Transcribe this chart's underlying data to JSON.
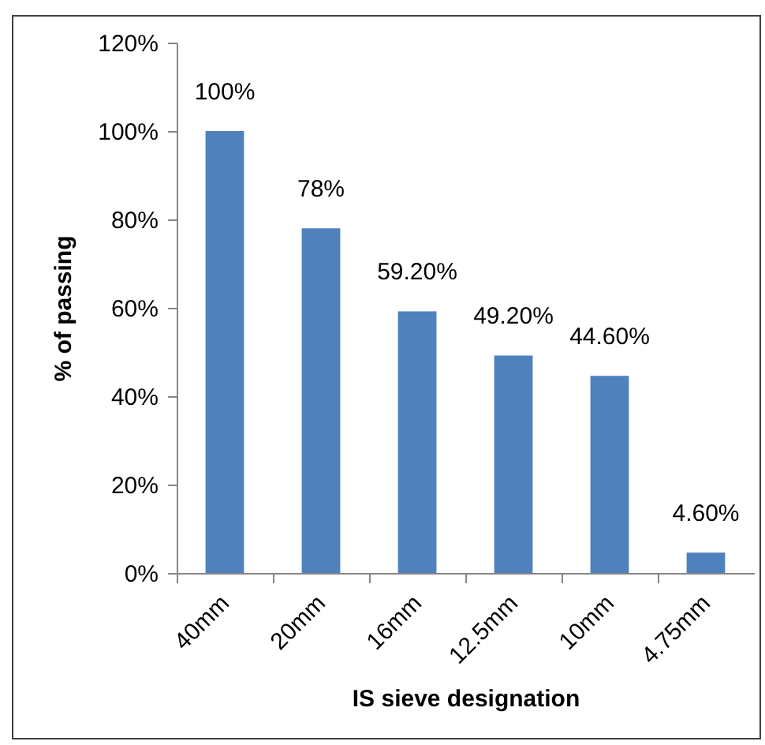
{
  "chart_data": {
    "type": "bar",
    "xlabel": "IS sieve designation",
    "ylabel": "% of passing",
    "categories": [
      "40mm",
      "20mm",
      "16mm",
      "12.5mm",
      "10mm",
      "4.75mm"
    ],
    "values": [
      100,
      78,
      59.2,
      49.2,
      44.6,
      4.6
    ],
    "color": "#4f81bd",
    "value_labels": [
      "100%",
      "78%",
      "59.20%",
      "49.20%",
      "44.60%",
      "4.60%"
    ],
    "ylim": [
      0,
      120
    ],
    "yticks": [
      {
        "value": 0,
        "label": "0%"
      },
      {
        "value": 20,
        "label": "20%"
      },
      {
        "value": 40,
        "label": "40%"
      },
      {
        "value": 60,
        "label": "60%"
      },
      {
        "value": 80,
        "label": "80%"
      },
      {
        "value": 100,
        "label": "100%"
      },
      {
        "value": 120,
        "label": "120%"
      }
    ]
  }
}
